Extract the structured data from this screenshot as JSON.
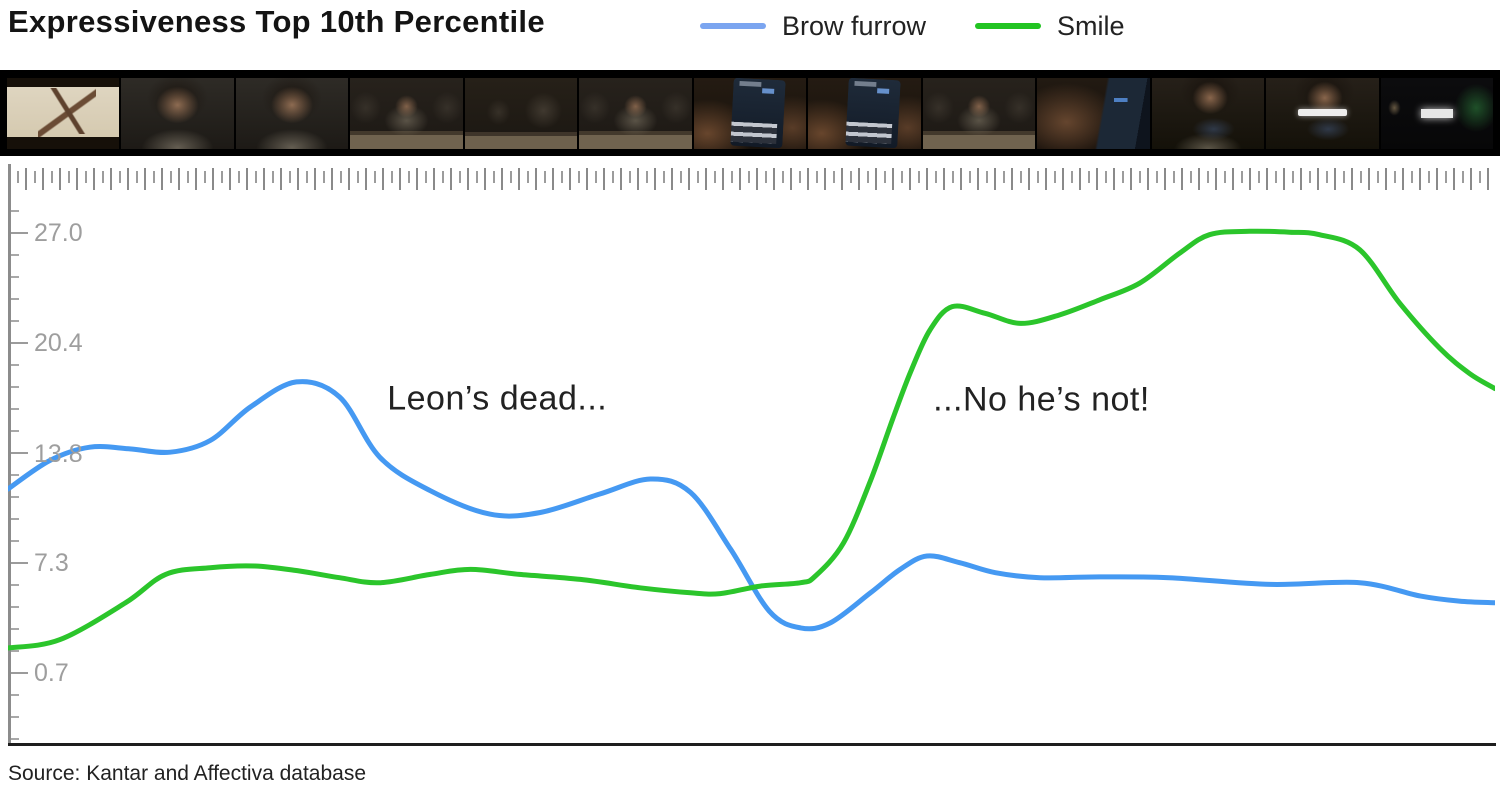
{
  "header": {
    "title": "Expressiveness Top 10th Percentile",
    "legend": [
      {
        "label": "Brow furrow",
        "swatch_color": "#7BA5F0"
      },
      {
        "label": "Smile",
        "swatch_color": "#22C422"
      }
    ]
  },
  "filmstrip": {
    "frames": [
      {
        "scene": "gecko"
      },
      {
        "scene": "woman-closeup"
      },
      {
        "scene": "woman-closeup"
      },
      {
        "scene": "woman-desk"
      },
      {
        "scene": "desk-wide"
      },
      {
        "scene": "woman-desk"
      },
      {
        "scene": "phone-keyboard"
      },
      {
        "scene": "phone-keyboard"
      },
      {
        "scene": "woman-desk"
      },
      {
        "scene": "hand-phone"
      },
      {
        "scene": "woman-phone"
      },
      {
        "scene": "woman-phone-text"
      },
      {
        "scene": "logo-dark"
      }
    ]
  },
  "chart_data": {
    "type": "line",
    "title": "Expressiveness Top 10th Percentile",
    "grid": false,
    "legend_position": "top",
    "x_axis": {
      "label": "",
      "tick_labels": [],
      "note": "video timeline ruler, no numeric labels"
    },
    "y_axis": {
      "ticks": [
        {
          "label": "27.0",
          "value": 27.0
        },
        {
          "label": "20.4",
          "value": 20.4
        },
        {
          "label": "13.8",
          "value": 13.8
        },
        {
          "label": "7.3",
          "value": 7.3
        },
        {
          "label": "0.7",
          "value": 0.7
        }
      ],
      "range_shown": [
        -3.5,
        29.5
      ]
    },
    "series": [
      {
        "name": "Brow furrow",
        "color": "#4599F2",
        "points": [
          [
            0,
            11.7
          ],
          [
            2.8,
            13.4
          ],
          [
            5.5,
            14.2
          ],
          [
            8.2,
            14.1
          ],
          [
            10.9,
            13.9
          ],
          [
            13.6,
            14.6
          ],
          [
            16.3,
            16.6
          ],
          [
            19.4,
            18.1
          ],
          [
            22.3,
            17.2
          ],
          [
            25,
            13.6
          ],
          [
            28.4,
            11.6
          ],
          [
            32.4,
            10.2
          ],
          [
            35.8,
            10.3
          ],
          [
            39.8,
            11.4
          ],
          [
            43.2,
            12.3
          ],
          [
            45.9,
            11.5
          ],
          [
            48.6,
            8.1
          ],
          [
            51.2,
            4.4
          ],
          [
            53.3,
            3.4
          ],
          [
            55.3,
            3.7
          ],
          [
            58,
            5.5
          ],
          [
            60,
            6.9
          ],
          [
            61.8,
            7.7
          ],
          [
            64,
            7.3
          ],
          [
            66.4,
            6.7
          ],
          [
            69.4,
            6.4
          ],
          [
            73.4,
            6.45
          ],
          [
            78.1,
            6.4
          ],
          [
            84.9,
            6.0
          ],
          [
            90.9,
            6.1
          ],
          [
            95,
            5.3
          ],
          [
            97.6,
            5.0
          ],
          [
            100,
            4.9
          ]
        ]
      },
      {
        "name": "Smile",
        "color": "#2BC52B",
        "points": [
          [
            0,
            2.2
          ],
          [
            3.5,
            2.7
          ],
          [
            7.9,
            4.9
          ],
          [
            10.6,
            6.6
          ],
          [
            13.6,
            7.0
          ],
          [
            16.6,
            7.1
          ],
          [
            19.6,
            6.8
          ],
          [
            22.3,
            6.4
          ],
          [
            25,
            6.1
          ],
          [
            28.4,
            6.6
          ],
          [
            31.1,
            6.9
          ],
          [
            34.4,
            6.6
          ],
          [
            38.5,
            6.3
          ],
          [
            42.5,
            5.8
          ],
          [
            45.9,
            5.5
          ],
          [
            47.9,
            5.45
          ],
          [
            50.6,
            5.9
          ],
          [
            53.3,
            6.1
          ],
          [
            54.3,
            6.5
          ],
          [
            56.2,
            8.5
          ],
          [
            58,
            12.2
          ],
          [
            59.5,
            15.9
          ],
          [
            60.7,
            18.7
          ],
          [
            62,
            21.2
          ],
          [
            63.5,
            22.6
          ],
          [
            65.7,
            22.2
          ],
          [
            68.1,
            21.6
          ],
          [
            70.7,
            22.1
          ],
          [
            73.4,
            23.0
          ],
          [
            76.1,
            24.0
          ],
          [
            78.8,
            25.8
          ],
          [
            80.8,
            26.9
          ],
          [
            83.5,
            27.1
          ],
          [
            86.2,
            27.05
          ],
          [
            88.2,
            26.9
          ],
          [
            90.9,
            26.0
          ],
          [
            93.6,
            22.8
          ],
          [
            96.3,
            20.1
          ],
          [
            98.3,
            18.6
          ],
          [
            100,
            17.7
          ]
        ]
      }
    ],
    "annotations": [
      {
        "text": "Leon’s dead...",
        "x_pct": 32.9,
        "y_value": 17.1
      },
      {
        "text": "...No he’s not!",
        "x_pct": 69.5,
        "y_value": 17.0
      }
    ]
  },
  "source": {
    "text": "Source: Kantar and Affectiva database"
  }
}
